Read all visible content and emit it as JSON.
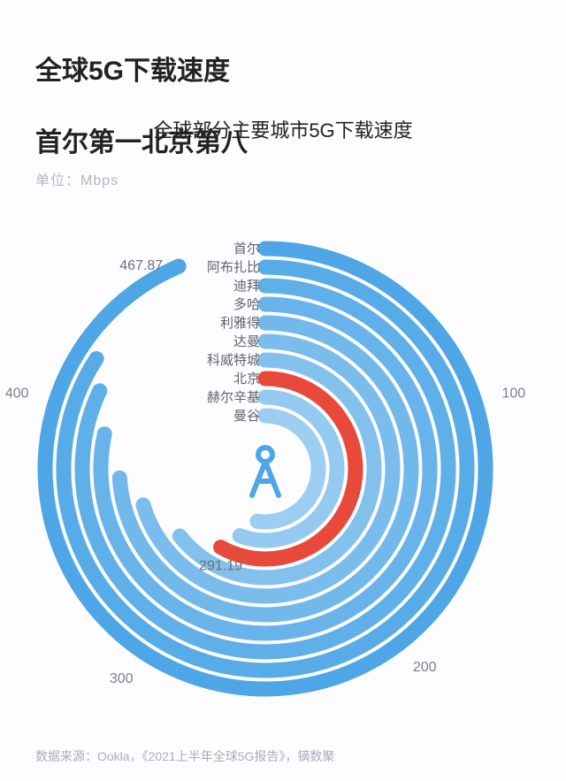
{
  "title_line1": "全球5G下载速度",
  "title_line2": "首尔第一北京第八",
  "subtitle": "全球部分主要城市5G下载速度",
  "unit_label": "单位：Mbps",
  "source": "数据来源：Ookla，《2021上半年全球5G报告》，镝数聚",
  "chart": {
    "type": "radial-bar",
    "background_color": "#ffffff",
    "scale_max": 500,
    "track_color": "none",
    "bar_color_default": "#4ea6e6",
    "bar_color_highlight": "#e74a3b",
    "stroke_width": 17,
    "inner_radius": 40,
    "ring_gap": 21,
    "center_icon_color": "#4ea6e6",
    "ticks": [
      {
        "value": 100,
        "label": "100"
      },
      {
        "value": 200,
        "label": "200"
      },
      {
        "value": 300,
        "label": "300"
      },
      {
        "value": 400,
        "label": "400"
      }
    ],
    "value_callouts": [
      {
        "city": "首尔",
        "value": 467.87,
        "label": "467.87"
      },
      {
        "city": "北京",
        "value": 291.19,
        "label": "291.19"
      }
    ],
    "cities": [
      {
        "name": "首尔",
        "value": 467.87,
        "highlight": false
      },
      {
        "name": "阿布扎比",
        "value": 421,
        "highlight": false
      },
      {
        "name": "迪拜",
        "value": 410,
        "highlight": false
      },
      {
        "name": "多哈",
        "value": 392,
        "highlight": false
      },
      {
        "name": "利雅得",
        "value": 370,
        "highlight": false
      },
      {
        "name": "达曼",
        "value": 352,
        "highlight": false
      },
      {
        "name": "科威特城",
        "value": 322,
        "highlight": false
      },
      {
        "name": "北京",
        "value": 291.19,
        "highlight": true
      },
      {
        "name": "赫尔辛基",
        "value": 279,
        "highlight": false
      },
      {
        "name": "曼谷",
        "value": 262,
        "highlight": false
      }
    ],
    "label_fontsize": 15,
    "tick_fontsize": 16,
    "label_color": "#5e626a",
    "tick_color": "#7b7f87"
  }
}
